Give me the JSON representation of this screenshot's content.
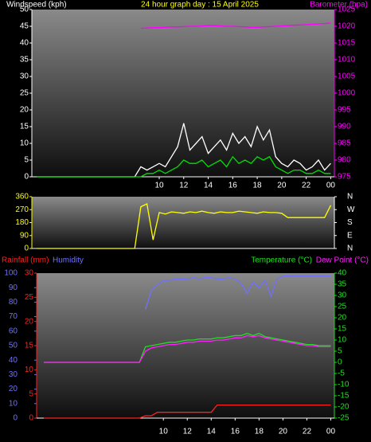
{
  "chart_data": [
    {
      "type": "line",
      "title": "24 hour graph day : 15 April 2025",
      "ylabel": "Windspeed (kph)",
      "y2label": "Barometer (hpa)",
      "x": [
        0,
        0.5,
        1,
        1.5,
        2,
        2.5,
        3,
        3.5,
        4,
        4.5,
        5,
        5.5,
        6,
        6.5,
        7,
        7.5,
        8,
        8.5,
        9,
        9.5,
        10,
        10.5,
        11,
        11.5,
        12,
        12.5,
        13,
        13.5,
        14,
        14.5,
        15,
        15.5,
        16,
        16.5,
        17,
        17.5,
        18,
        18.5,
        19,
        19.5,
        20,
        20.5,
        21,
        21.5,
        22,
        22.5,
        23,
        23.5,
        24
      ],
      "xlim": [
        -0.4,
        24.3
      ],
      "xticks": [
        10,
        12,
        14,
        16,
        18,
        20,
        22,
        {
          "value": 24,
          "label": "00"
        }
      ],
      "ylim": [
        0,
        50
      ],
      "yticks": [
        0,
        5,
        10,
        15,
        20,
        25,
        30,
        35,
        40,
        45,
        50
      ],
      "y2lim": [
        975,
        1025
      ],
      "y2ticks": [
        975,
        980,
        985,
        990,
        995,
        1000,
        1005,
        1010,
        1015,
        1020,
        1025
      ],
      "series": [
        {
          "color": "#ffffff",
          "values": [
            0,
            0,
            0,
            0,
            0,
            0,
            0,
            0,
            0,
            0,
            0,
            0,
            0,
            0,
            0,
            0,
            0,
            3,
            2,
            3,
            4,
            3,
            6,
            9,
            16,
            8,
            10,
            12,
            7,
            9,
            11,
            8,
            13,
            10,
            12,
            9,
            15,
            11,
            14,
            6,
            4,
            3,
            5,
            4,
            2,
            3,
            5,
            2,
            4
          ]
        },
        {
          "color": "#00e000",
          "values": [
            0,
            0,
            0,
            0,
            0,
            0,
            0,
            0,
            0,
            0,
            0,
            0,
            0,
            0,
            0,
            0,
            0,
            0,
            1,
            1,
            2,
            1,
            2,
            3,
            5,
            4,
            4,
            5,
            3,
            4,
            5,
            3,
            6,
            4,
            5,
            4,
            6,
            5,
            6,
            3,
            2,
            1,
            2,
            2,
            1,
            1,
            2,
            1,
            1
          ]
        },
        {
          "color": "#ff00ff",
          "axis": "y2",
          "values": [
            null,
            null,
            null,
            null,
            null,
            null,
            null,
            null,
            null,
            null,
            null,
            null,
            null,
            null,
            null,
            null,
            null,
            1019.4,
            1019.5,
            1019.6,
            1019.6,
            1019.7,
            1019.8,
            1019.8,
            1019.9,
            1020,
            1020,
            1020.1,
            1020.2,
            1020.2,
            1020.1,
            1020,
            1020,
            1019.9,
            1019.8,
            1019.7,
            1019.7,
            1019.8,
            1019.9,
            1020,
            1020.1,
            1020.2,
            1020.3,
            1020.4,
            1020.5,
            1020.6,
            1020.7,
            1020.8,
            1021
          ]
        }
      ]
    },
    {
      "type": "line",
      "x": [
        0,
        0.5,
        1,
        1.5,
        2,
        2.5,
        3,
        3.5,
        4,
        4.5,
        5,
        5.5,
        6,
        6.5,
        7,
        7.5,
        8,
        8.5,
        9,
        9.5,
        10,
        10.5,
        11,
        11.5,
        12,
        12.5,
        13,
        13.5,
        14,
        14.5,
        15,
        15.5,
        16,
        16.5,
        17,
        17.5,
        18,
        18.5,
        19,
        19.5,
        20,
        20.5,
        21,
        21.5,
        22,
        22.5,
        23,
        23.5,
        24
      ],
      "xlim": [
        -0.4,
        24.3
      ],
      "ylim": [
        0,
        360
      ],
      "yticks": [
        0,
        90,
        180,
        270,
        360
      ],
      "y2lim": [
        0,
        360
      ],
      "y2ticks": [
        {
          "value": 0,
          "label": "N"
        },
        {
          "value": 90,
          "label": "E"
        },
        {
          "value": 180,
          "label": "S"
        },
        {
          "value": 270,
          "label": "W"
        },
        {
          "value": 360,
          "label": "N"
        }
      ],
      "series": [
        {
          "color": "#ffff00",
          "values": [
            0,
            0,
            0,
            0,
            0,
            0,
            0,
            0,
            0,
            0,
            0,
            0,
            0,
            0,
            0,
            0,
            0,
            290,
            310,
            60,
            250,
            240,
            255,
            250,
            245,
            255,
            250,
            260,
            250,
            245,
            255,
            250,
            250,
            260,
            255,
            250,
            245,
            255,
            250,
            250,
            245,
            215,
            215,
            215,
            215,
            215,
            215,
            215,
            300
          ]
        }
      ]
    },
    {
      "type": "line",
      "x": [
        0,
        0.5,
        1,
        1.5,
        2,
        2.5,
        3,
        3.5,
        4,
        4.5,
        5,
        5.5,
        6,
        6.5,
        7,
        7.5,
        8,
        8.5,
        9,
        9.5,
        10,
        10.5,
        11,
        11.5,
        12,
        12.5,
        13,
        13.5,
        14,
        14.5,
        15,
        15.5,
        16,
        16.5,
        17,
        17.5,
        18,
        18.5,
        19,
        19.5,
        20,
        20.5,
        21,
        21.5,
        22,
        22.5,
        23,
        23.5,
        24
      ],
      "xlim": [
        -0.6,
        24.3
      ],
      "xticks": [
        10,
        12,
        14,
        16,
        18,
        20,
        22,
        {
          "value": 24,
          "label": "00"
        }
      ],
      "ylim": [
        0,
        100
      ],
      "yticks": [
        0,
        10,
        20,
        30,
        40,
        50,
        60,
        70,
        80,
        90,
        100
      ],
      "y3lim": [
        0,
        30
      ],
      "y3ticks": [
        0,
        5,
        10,
        15,
        20,
        25,
        30
      ],
      "y2lim": [
        -25,
        40
      ],
      "y2ticks": [
        -25,
        -20,
        -15,
        -10,
        -5,
        0,
        5,
        10,
        15,
        20,
        25,
        30,
        35,
        40
      ],
      "series": [
        {
          "name": "Rainfall (mm)",
          "color": "#ff2020",
          "axis": "y3",
          "values": [
            0,
            0,
            0,
            0,
            0,
            0,
            0,
            0,
            0,
            0,
            0,
            0,
            0,
            0,
            0,
            0,
            0,
            0.5,
            0.5,
            1.2,
            1.2,
            1.2,
            1.2,
            1.2,
            1.2,
            1.2,
            1.2,
            1.2,
            1.2,
            2.7,
            2.7,
            2.7,
            2.7,
            2.7,
            2.7,
            2.7,
            2.7,
            2.7,
            2.7,
            2.7,
            2.7,
            2.7,
            2.7,
            2.7,
            2.7,
            2.7,
            2.7,
            2.7,
            2.7
          ]
        },
        {
          "name": "Humidity",
          "color": "#7070ff",
          "values": [
            null,
            null,
            null,
            null,
            null,
            null,
            null,
            null,
            null,
            null,
            null,
            null,
            null,
            null,
            null,
            null,
            null,
            75,
            88,
            92,
            95,
            95,
            96,
            96,
            96,
            97,
            96,
            97,
            97,
            96,
            96,
            97,
            96,
            93,
            86,
            94,
            90,
            95,
            84,
            96,
            98,
            98,
            98,
            98,
            98,
            98,
            98,
            98,
            98
          ]
        },
        {
          "name": "Temperature (°C)",
          "color": "#20e020",
          "axis": "y2",
          "values": [
            0,
            0,
            0,
            0,
            0,
            0,
            0,
            0,
            0,
            0,
            0,
            0,
            0,
            0,
            0,
            0,
            0,
            7,
            7.5,
            8,
            8.5,
            9,
            9,
            9.5,
            10,
            10,
            10.5,
            10.5,
            10.5,
            11,
            11,
            11.5,
            12,
            12,
            13,
            12,
            13,
            11.5,
            11,
            10.5,
            10,
            9.5,
            9,
            8.5,
            8,
            8,
            7.5,
            7.5,
            7.5
          ]
        },
        {
          "name": "Dew Point (°C)",
          "color": "#ff20ff",
          "axis": "y2",
          "values": [
            0,
            0,
            0,
            0,
            0,
            0,
            0,
            0,
            0,
            0,
            0,
            0,
            0,
            0,
            0,
            0,
            0,
            5,
            6.5,
            7,
            7.5,
            8,
            8,
            8.5,
            9,
            9,
            9.5,
            9.5,
            9.5,
            10,
            10,
            10.5,
            11,
            11,
            12,
            11.5,
            12,
            11,
            10.5,
            10,
            9.5,
            9,
            8.5,
            8,
            7.5,
            7.5,
            7,
            7,
            7
          ]
        }
      ]
    }
  ]
}
